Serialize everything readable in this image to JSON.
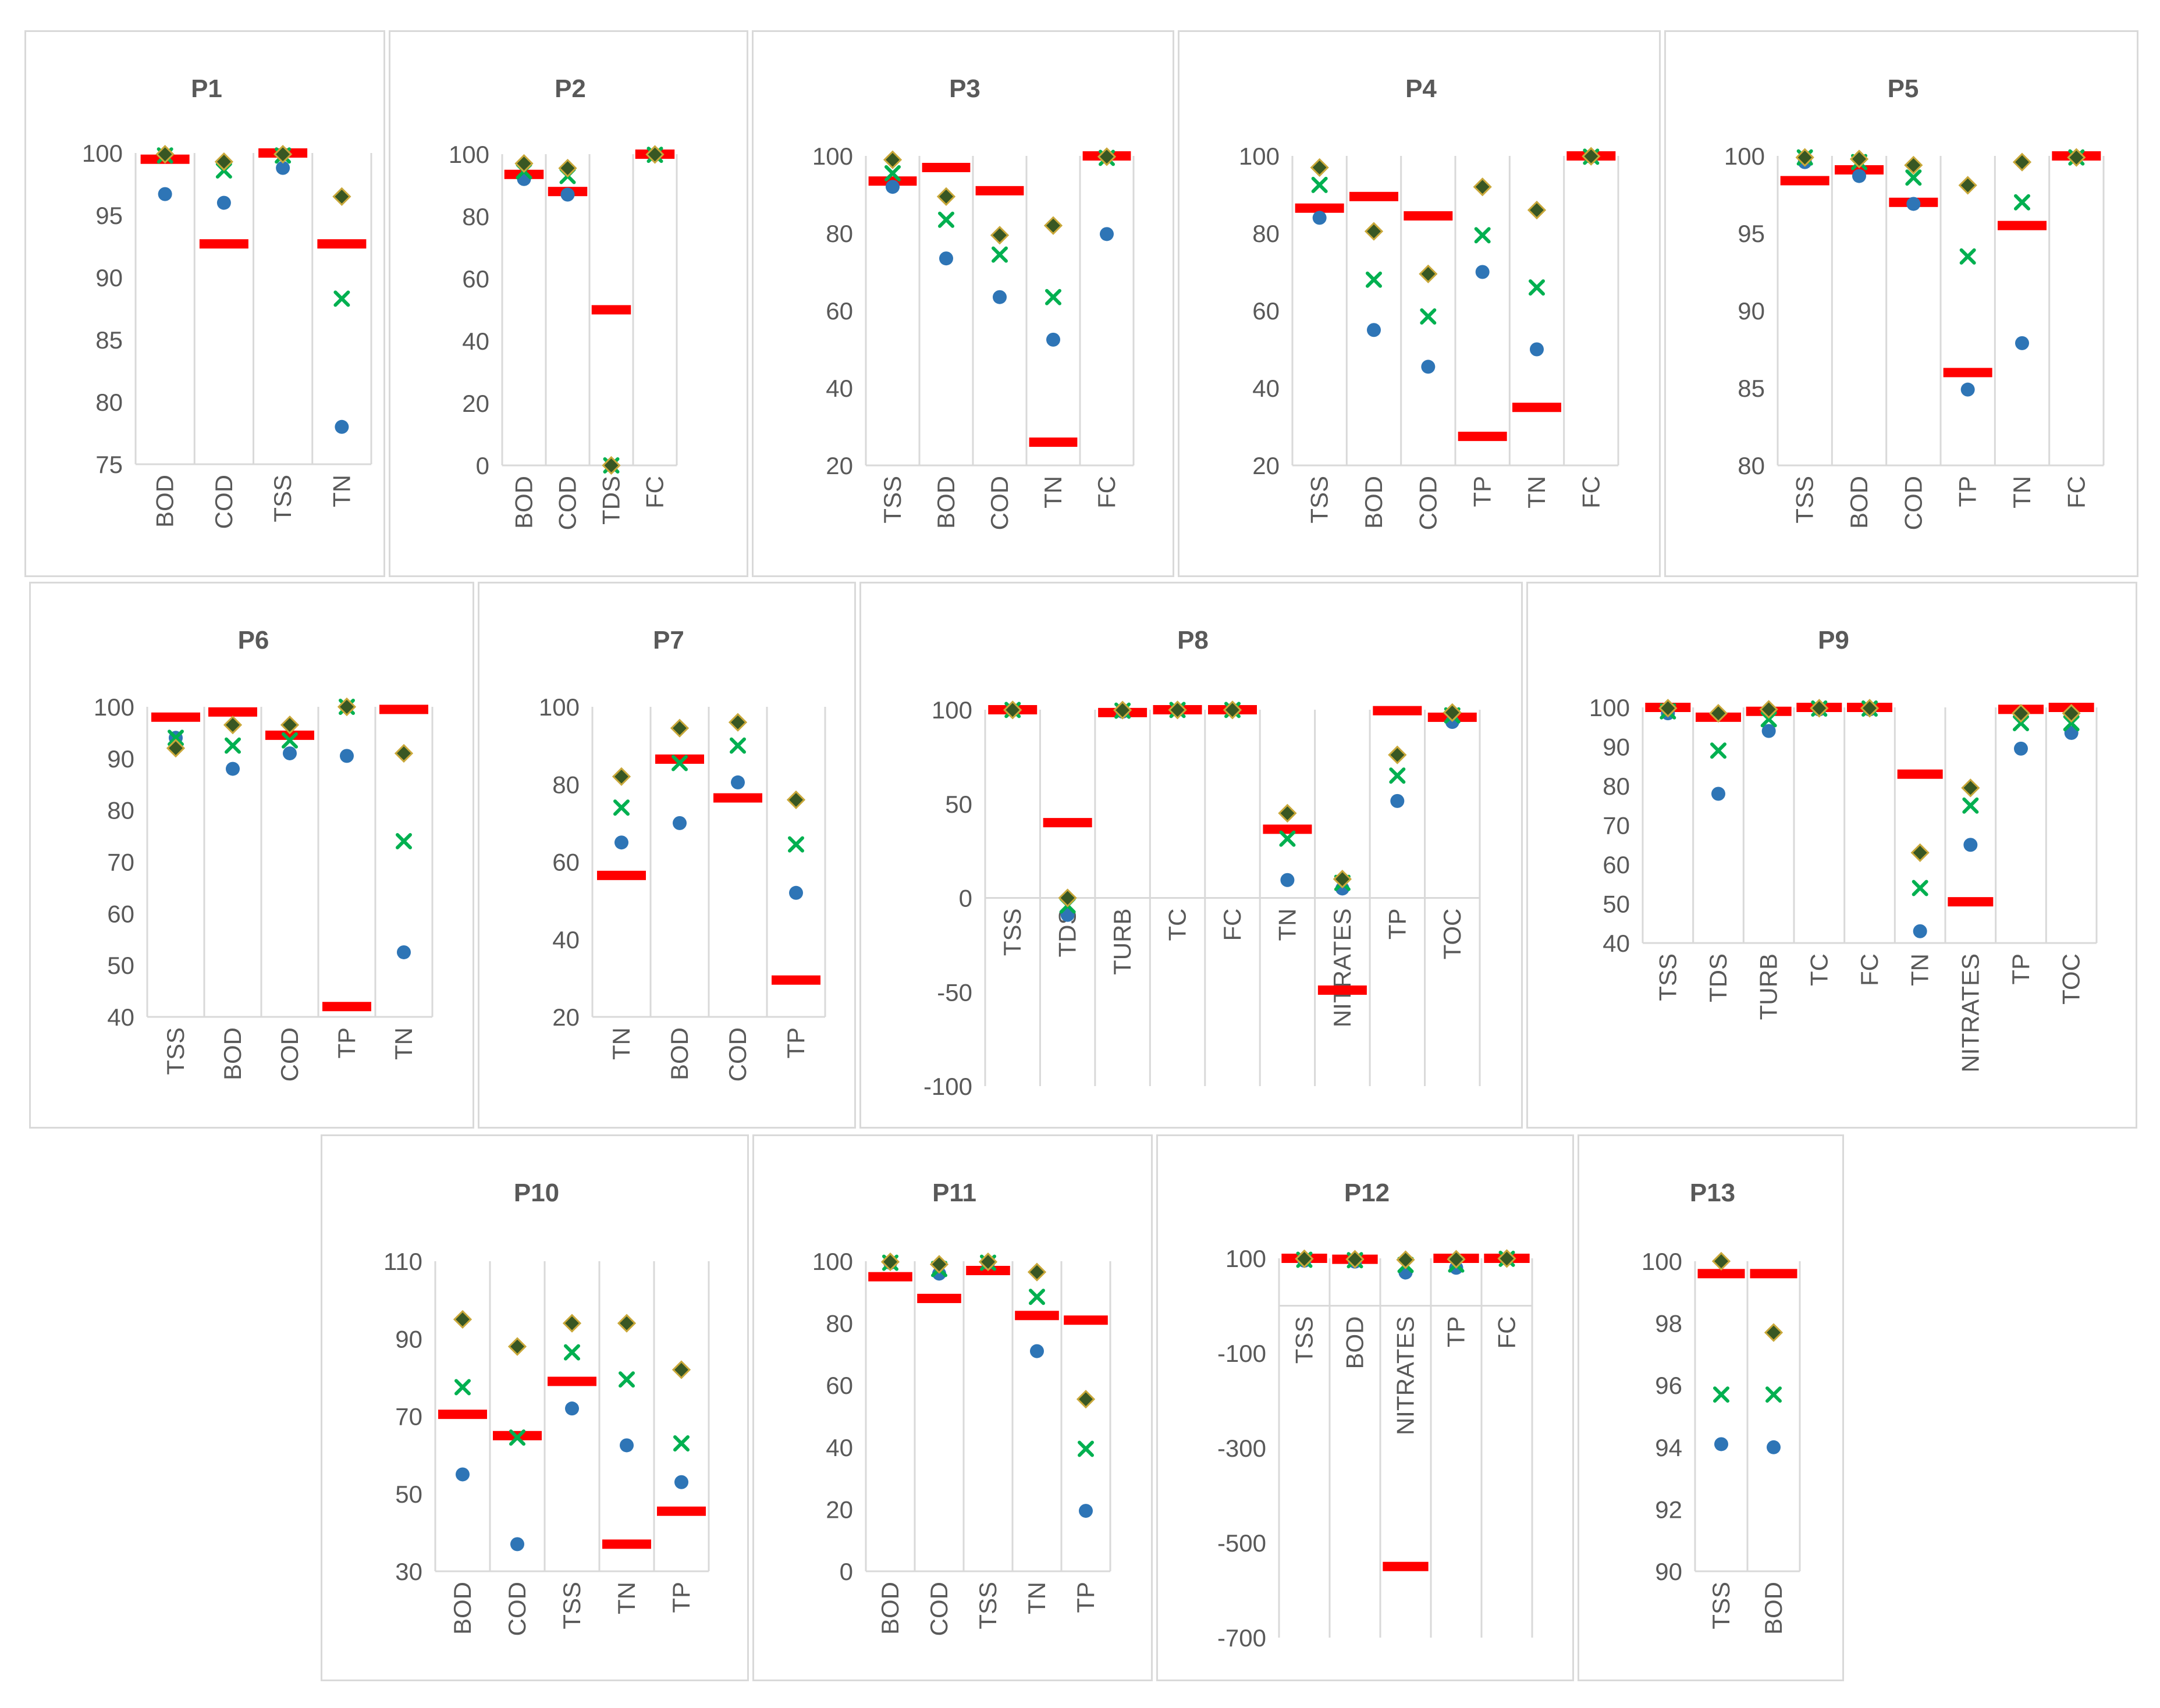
{
  "colors": {
    "red_marker": "#ff0000",
    "blue_dot": "#2e75b6",
    "green_x": "#00b050",
    "diamond_fill": "#385723",
    "diamond_edge": "#c9a83a",
    "grid": "#d9d9d9",
    "axis_text": "#595959",
    "title_text": "#595959"
  },
  "chart_data": [
    {
      "id": "p1",
      "type": "scatter",
      "title": "P1",
      "ylim": [
        75,
        100
      ],
      "ticks": [
        75,
        80,
        85,
        90,
        95,
        100
      ],
      "categories": [
        "BOD",
        "COD",
        "TSS",
        "TN"
      ],
      "series": [
        {
          "name": "red",
          "marker": "bar",
          "values": [
            99.5,
            92.7,
            100,
            92.7
          ]
        },
        {
          "name": "blue",
          "marker": "circle",
          "values": [
            96.7,
            96,
            98.8,
            78
          ]
        },
        {
          "name": "green",
          "marker": "x",
          "values": [
            99.8,
            98.6,
            99.8,
            88.3
          ]
        },
        {
          "name": "diamond",
          "marker": "diamond",
          "values": [
            99.9,
            99.3,
            99.9,
            96.5
          ]
        }
      ]
    },
    {
      "id": "p2",
      "type": "scatter",
      "title": "P2",
      "ylim": [
        0,
        100
      ],
      "ticks": [
        0,
        20,
        40,
        60,
        80,
        100
      ],
      "categories": [
        "BOD",
        "COD",
        "TDS",
        "FC"
      ],
      "series": [
        {
          "name": "red",
          "marker": "bar",
          "values": [
            93.5,
            88,
            50,
            100
          ]
        },
        {
          "name": "blue",
          "marker": "circle",
          "values": [
            92,
            87,
            0,
            99.8
          ]
        },
        {
          "name": "green",
          "marker": "x",
          "values": [
            94.5,
            93,
            0,
            99.8
          ]
        },
        {
          "name": "diamond",
          "marker": "diamond",
          "values": [
            97,
            95.5,
            0,
            99.9
          ]
        }
      ]
    },
    {
      "id": "p3",
      "type": "scatter",
      "title": "P3",
      "ylim": [
        20,
        100
      ],
      "ticks": [
        20,
        40,
        60,
        80,
        100
      ],
      "categories": [
        "TSS",
        "BOD",
        "COD",
        "TN",
        "FC"
      ],
      "series": [
        {
          "name": "red",
          "marker": "bar",
          "values": [
            93.5,
            97,
            91,
            26,
            100
          ]
        },
        {
          "name": "blue",
          "marker": "circle",
          "values": [
            92,
            73.5,
            63.5,
            52.5,
            79.8
          ]
        },
        {
          "name": "green",
          "marker": "x",
          "values": [
            95.5,
            83.5,
            74.5,
            63.5,
            99.5
          ]
        },
        {
          "name": "diamond",
          "marker": "diamond",
          "values": [
            99,
            89.5,
            79.5,
            82,
            99.8
          ]
        }
      ]
    },
    {
      "id": "p4",
      "type": "scatter",
      "title": "P4",
      "ylim": [
        20,
        100
      ],
      "ticks": [
        20,
        40,
        60,
        80,
        100
      ],
      "categories": [
        "TSS",
        "BOD",
        "COD",
        "TP",
        "TN",
        "FC"
      ],
      "series": [
        {
          "name": "red",
          "marker": "bar",
          "values": [
            86.5,
            89.5,
            84.5,
            27.5,
            35,
            100
          ]
        },
        {
          "name": "blue",
          "marker": "circle",
          "values": [
            84,
            55,
            45.5,
            70,
            50,
            99.8
          ]
        },
        {
          "name": "green",
          "marker": "x",
          "values": [
            92.5,
            68,
            58.5,
            79.5,
            66,
            99.8
          ]
        },
        {
          "name": "diamond",
          "marker": "diamond",
          "values": [
            97,
            80.5,
            69.5,
            92,
            86,
            99.9
          ]
        }
      ]
    },
    {
      "id": "p5",
      "type": "scatter",
      "title": "P5",
      "ylim": [
        80,
        100
      ],
      "ticks": [
        80,
        85,
        90,
        95,
        100
      ],
      "categories": [
        "TSS",
        "BOD",
        "COD",
        "TP",
        "TN",
        "FC"
      ],
      "series": [
        {
          "name": "red",
          "marker": "bar",
          "values": [
            98.4,
            99.1,
            97,
            86,
            95.5,
            100
          ]
        },
        {
          "name": "blue",
          "marker": "circle",
          "values": [
            99.6,
            98.7,
            96.9,
            84.9,
            87.9,
            99.9
          ]
        },
        {
          "name": "green",
          "marker": "x",
          "values": [
            99.9,
            99.6,
            98.6,
            93.5,
            97,
            99.9
          ]
        },
        {
          "name": "diamond",
          "marker": "diamond",
          "values": [
            99.9,
            99.8,
            99.4,
            98.1,
            99.6,
            99.9
          ]
        }
      ]
    },
    {
      "id": "p6",
      "type": "scatter",
      "title": "P6",
      "ylim": [
        40,
        100
      ],
      "ticks": [
        40,
        50,
        60,
        70,
        80,
        90,
        100
      ],
      "categories": [
        "TSS",
        "BOD",
        "COD",
        "TP",
        "TN"
      ],
      "series": [
        {
          "name": "red",
          "marker": "bar",
          "values": [
            98,
            99,
            94.5,
            42,
            99.5
          ]
        },
        {
          "name": "blue",
          "marker": "circle",
          "values": [
            94,
            88,
            91,
            90.5,
            52.5
          ]
        },
        {
          "name": "green",
          "marker": "x",
          "values": [
            94,
            92.5,
            93.5,
            100,
            74
          ]
        },
        {
          "name": "diamond",
          "marker": "diamond",
          "values": [
            92,
            96.5,
            96.5,
            100,
            91
          ]
        }
      ]
    },
    {
      "id": "p7",
      "type": "scatter",
      "title": "P7",
      "ylim": [
        20,
        100
      ],
      "ticks": [
        20,
        40,
        60,
        80,
        100
      ],
      "categories": [
        "TN",
        "BOD",
        "COD",
        "TP"
      ],
      "series": [
        {
          "name": "red",
          "marker": "bar",
          "values": [
            56.5,
            86.5,
            76.5,
            29.5
          ]
        },
        {
          "name": "blue",
          "marker": "circle",
          "values": [
            65,
            70,
            80.5,
            52
          ]
        },
        {
          "name": "green",
          "marker": "x",
          "values": [
            74,
            85.5,
            90,
            64.5
          ]
        },
        {
          "name": "diamond",
          "marker": "diamond",
          "values": [
            82,
            94.5,
            96,
            76
          ]
        }
      ]
    },
    {
      "id": "p8",
      "type": "scatter",
      "title": "P8",
      "ylim": [
        -100,
        100
      ],
      "ticks": [
        -100,
        -50,
        0,
        50,
        100
      ],
      "categories": [
        "TSS",
        "TDS",
        "TURB",
        "TC",
        "FC",
        "TN",
        "NITRATES",
        "TP",
        "TOC"
      ],
      "series": [
        {
          "name": "red",
          "marker": "bar",
          "values": [
            100,
            40,
            98.5,
            100,
            100,
            36.5,
            -49,
            99.5,
            96
          ]
        },
        {
          "name": "blue",
          "marker": "circle",
          "values": [
            99.8,
            -9,
            99,
            99.9,
            99.9,
            9.5,
            5,
            51.5,
            93.5
          ]
        },
        {
          "name": "green",
          "marker": "x",
          "values": [
            99.9,
            -4,
            99.5,
            99.9,
            99.9,
            31.5,
            8,
            65,
            97
          ]
        },
        {
          "name": "diamond",
          "marker": "diamond",
          "values": [
            99.9,
            0,
            99.8,
            99.9,
            99.9,
            45,
            10,
            76,
            98.5
          ]
        }
      ]
    },
    {
      "id": "p9",
      "type": "scatter",
      "title": "P9",
      "ylim": [
        40,
        100
      ],
      "ticks": [
        40,
        50,
        60,
        70,
        80,
        90,
        100
      ],
      "categories": [
        "TSS",
        "TDS",
        "TURB",
        "TC",
        "FC",
        "TN",
        "NITRATES",
        "TP",
        "TOC"
      ],
      "series": [
        {
          "name": "red",
          "marker": "bar",
          "values": [
            100,
            97.5,
            99,
            100,
            100,
            83,
            50.5,
            99.5,
            100
          ]
        },
        {
          "name": "blue",
          "marker": "circle",
          "values": [
            98.5,
            78,
            94,
            99.5,
            99.5,
            43,
            65,
            89.5,
            93.5
          ]
        },
        {
          "name": "green",
          "marker": "x",
          "values": [
            99,
            89,
            97,
            99.7,
            99.7,
            54,
            75,
            96,
            96
          ]
        },
        {
          "name": "diamond",
          "marker": "diamond",
          "values": [
            99.8,
            98.5,
            99.5,
            99.8,
            99.8,
            63,
            79.5,
            98.5,
            98.5
          ]
        }
      ]
    },
    {
      "id": "p10",
      "type": "scatter",
      "title": "P10",
      "ylim": [
        30,
        110
      ],
      "ticks": [
        30,
        50,
        70,
        90,
        110
      ],
      "categories": [
        "BOD",
        "COD",
        "TSS",
        "TN",
        "TP"
      ],
      "series": [
        {
          "name": "red",
          "marker": "bar",
          "values": [
            70.5,
            65,
            79,
            37,
            45.5
          ]
        },
        {
          "name": "blue",
          "marker": "circle",
          "values": [
            55,
            37,
            72,
            62.5,
            53
          ]
        },
        {
          "name": "green",
          "marker": "x",
          "values": [
            77.5,
            64.5,
            86.5,
            79.5,
            63
          ]
        },
        {
          "name": "diamond",
          "marker": "diamond",
          "values": [
            95,
            88,
            94,
            94,
            82
          ]
        }
      ]
    },
    {
      "id": "p11",
      "type": "scatter",
      "title": "P11",
      "ylim": [
        0,
        100
      ],
      "ticks": [
        0,
        20,
        40,
        60,
        80,
        100
      ],
      "categories": [
        "BOD",
        "COD",
        "TSS",
        "TN",
        "TP"
      ],
      "series": [
        {
          "name": "red",
          "marker": "bar",
          "values": [
            95,
            88,
            97,
            82.5,
            81
          ]
        },
        {
          "name": "blue",
          "marker": "circle",
          "values": [
            99.5,
            96,
            99.5,
            71,
            19.5
          ]
        },
        {
          "name": "green",
          "marker": "x",
          "values": [
            99.5,
            97.5,
            99.5,
            88.5,
            39.5
          ]
        },
        {
          "name": "diamond",
          "marker": "diamond",
          "values": [
            99.8,
            99,
            99.8,
            96.5,
            55.5
          ]
        }
      ]
    },
    {
      "id": "p12",
      "type": "scatter",
      "title": "P12",
      "ylim": [
        -700,
        100
      ],
      "ticks": [
        -700,
        -500,
        -300,
        -100,
        100
      ],
      "categories": [
        "TSS",
        "BOD",
        "NITRATES",
        "TP",
        "FC"
      ],
      "series": [
        {
          "name": "red",
          "marker": "bar",
          "values": [
            100,
            98,
            -550,
            100,
            100
          ]
        },
        {
          "name": "blue",
          "marker": "circle",
          "values": [
            95,
            93,
            70,
            80,
            99
          ]
        },
        {
          "name": "green",
          "marker": "x",
          "values": [
            97,
            96,
            86,
            87,
            99
          ]
        },
        {
          "name": "diamond",
          "marker": "diamond",
          "values": [
            99,
            98,
            97,
            98,
            99.5
          ]
        }
      ]
    },
    {
      "id": "p13",
      "type": "scatter",
      "title": "P13",
      "ylim": [
        90,
        100
      ],
      "ticks": [
        90,
        92,
        94,
        96,
        98,
        100
      ],
      "categories": [
        "TSS",
        "BOD"
      ],
      "series": [
        {
          "name": "red",
          "marker": "bar",
          "values": [
            99.6,
            99.6
          ]
        },
        {
          "name": "blue",
          "marker": "circle",
          "values": [
            94.1,
            94
          ]
        },
        {
          "name": "green",
          "marker": "x",
          "values": [
            95.7,
            95.7
          ]
        },
        {
          "name": "diamond",
          "marker": "diamond",
          "values": [
            100,
            97.7
          ]
        }
      ]
    }
  ]
}
